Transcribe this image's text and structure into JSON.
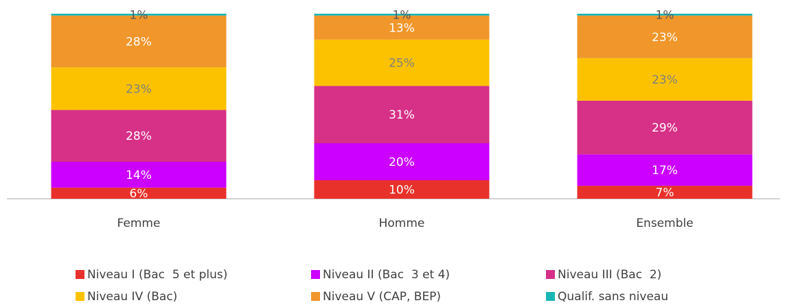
{
  "chart_data": {
    "type": "stacked_bar",
    "categories": [
      "Femme",
      "Homme",
      "Ensemble"
    ],
    "ylim": [
      0,
      100
    ],
    "series": [
      {
        "name": "Niveau I (Bac  5 et plus)",
        "color": "#e8312a",
        "label_color": "#ffffff",
        "values": [
          6,
          10,
          7
        ],
        "value_labels": [
          "6%",
          "10%",
          "7%"
        ]
      },
      {
        "name": "Niveau II (Bac  3 et 4)",
        "color": "#cc00ff",
        "label_color": "#ffffff",
        "values": [
          14,
          20,
          17
        ],
        "value_labels": [
          "14%",
          "20%",
          "17%"
        ]
      },
      {
        "name": "Niveau III (Bac  2)",
        "color": "#d63087",
        "label_color": "#ffffff",
        "values": [
          28,
          31,
          29
        ],
        "value_labels": [
          "28%",
          "31%",
          "29%"
        ]
      },
      {
        "name": "Niveau IV (Bac)",
        "color": "#fcc200",
        "label_color": "#7f7f7f",
        "values": [
          23,
          25,
          23
        ],
        "value_labels": [
          "23%",
          "25%",
          "23%"
        ]
      },
      {
        "name": "Niveau V (CAP, BEP)",
        "color": "#f0962a",
        "label_color": "#ffffff",
        "values": [
          28,
          13,
          23
        ],
        "value_labels": [
          "28%",
          "13%",
          "23%"
        ]
      },
      {
        "name": "Qualif. sans niveau",
        "color": "#1ab5b5",
        "label_color": "#595959",
        "values": [
          1,
          1,
          1
        ],
        "value_labels": [
          "1%",
          "1%",
          "1%"
        ]
      }
    ]
  }
}
